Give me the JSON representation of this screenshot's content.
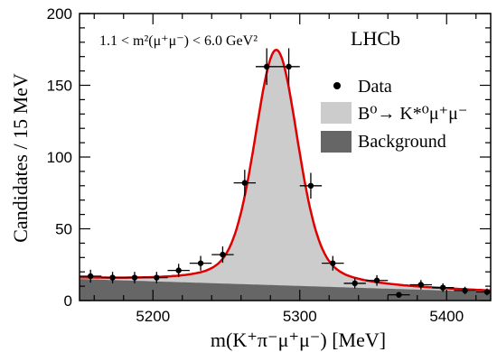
{
  "chart_data": {
    "type": "scatter",
    "xlabel": "m(K⁺π⁻μ⁺μ⁻) [MeV]",
    "ylabel": "Candidates / 15 MeV",
    "xlim": [
      5150,
      5430
    ],
    "ylim": [
      0,
      200
    ],
    "x_ticks": [
      5200,
      5300,
      5400
    ],
    "y_ticks": [
      0,
      50,
      100,
      150,
      200
    ],
    "annotation": "1.1 < m²(μ⁺μ⁻) < 6.0 GeV²",
    "experiment_label": "LHCb",
    "legend_position": "top-right",
    "legend": {
      "data": "Data",
      "signal": "B⁰→ K*⁰μ⁺μ⁻",
      "background": "Background"
    },
    "colors": {
      "data": "#000000",
      "signal_fill": "#cccccc",
      "background_fill": "#666666",
      "total_fit": "#e00000"
    },
    "bin_half_width": 7.5,
    "data_points": [
      {
        "x": 5157.5,
        "y": 17,
        "yerr": 4.5
      },
      {
        "x": 5172.5,
        "y": 16,
        "yerr": 4.0
      },
      {
        "x": 5187.5,
        "y": 16,
        "yerr": 4.0
      },
      {
        "x": 5202.5,
        "y": 16,
        "yerr": 4.0
      },
      {
        "x": 5217.5,
        "y": 21,
        "yerr": 4.6
      },
      {
        "x": 5232.5,
        "y": 26,
        "yerr": 5.1
      },
      {
        "x": 5247.5,
        "y": 32,
        "yerr": 5.7
      },
      {
        "x": 5262.5,
        "y": 82,
        "yerr": 9.1
      },
      {
        "x": 5277.5,
        "y": 163,
        "yerr": 12.8
      },
      {
        "x": 5292.5,
        "y": 163,
        "yerr": 12.8
      },
      {
        "x": 5307.5,
        "y": 80,
        "yerr": 9.0
      },
      {
        "x": 5322.5,
        "y": 26,
        "yerr": 5.1
      },
      {
        "x": 5337.5,
        "y": 12,
        "yerr": 3.5
      },
      {
        "x": 5352.5,
        "y": 14,
        "yerr": 3.7
      },
      {
        "x": 5367.5,
        "y": 4,
        "yerr": 2.0
      },
      {
        "x": 5382.5,
        "y": 11,
        "yerr": 3.3
      },
      {
        "x": 5397.5,
        "y": 9,
        "yerr": 3.0
      },
      {
        "x": 5412.5,
        "y": 7,
        "yerr": 2.6
      },
      {
        "x": 5427.5,
        "y": 6,
        "yerr": 2.4
      }
    ],
    "fit_model": {
      "peak_mass": 5284,
      "peak_height": 164,
      "core_width": 14.5,
      "background_at_low_edge": 15,
      "background_at_high_edge": 6
    }
  }
}
